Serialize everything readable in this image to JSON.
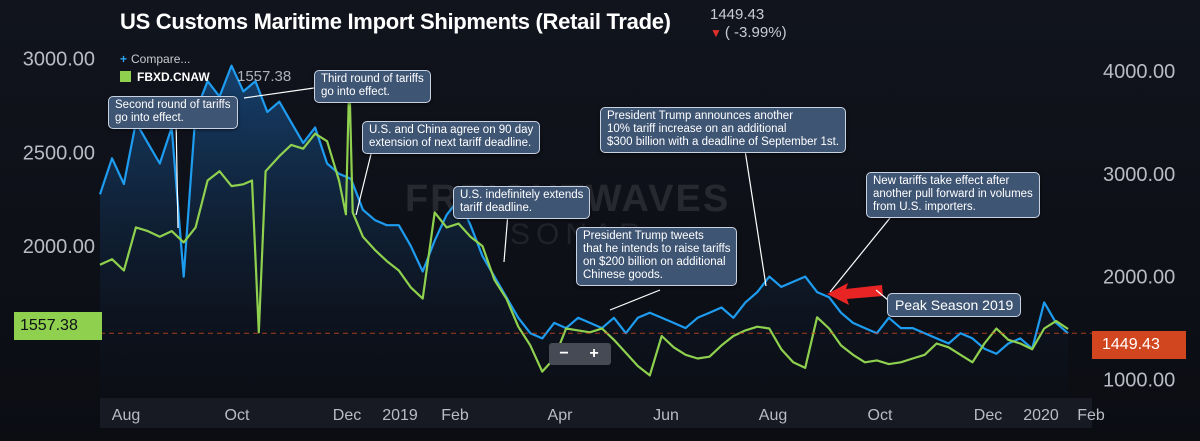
{
  "header": {
    "title": "US Customs Maritime Import Shipments (Retail Trade)",
    "last_value": "1449.43",
    "change": "( -3.99%)",
    "change_color": "#e0302a"
  },
  "legend": {
    "compare_label": "Compare...",
    "series_label": "FBXD.CNAW",
    "series_value": "1557.38"
  },
  "watermark": {
    "text": "FREIGHTWAVES",
    "sub": "SONAR"
  },
  "value_tags": {
    "left": "1557.38",
    "right": "1449.43",
    "left_color": "#8fd14f",
    "right_color": "#d2461f"
  },
  "zoom_controls": {
    "minus": "−",
    "plus": "+"
  },
  "annotations": [
    {
      "text": "Second round of tariffs\ngo into effect."
    },
    {
      "text": "Third round of tariffs\ngo into effect."
    },
    {
      "text": "U.S. and China agree on 90 day\nextension of next tariff deadline."
    },
    {
      "text": "U.S. indefinitely extends\ntariff deadline."
    },
    {
      "text": "President Trump tweets\nthat he intends to raise tariffs\non $200 billion on additional\nChinese goods."
    },
    {
      "text": "President Trump announces another\n10% tariff increase on an additional\n$300 billion with a deadline of September 1st."
    },
    {
      "text": "New tariffs take effect after\nanother pull forward in volumes\nfrom U.S. importers."
    }
  ],
  "peak_label": "Peak Season 2019",
  "chart_data": {
    "type": "line",
    "x_ticks": [
      "Aug",
      "Oct",
      "Dec",
      "2019",
      "Feb",
      "Apr",
      "Jun",
      "Aug",
      "Oct",
      "Dec",
      "2020",
      "Feb"
    ],
    "left_axis": {
      "ticks": [
        "3000.00",
        "2500.00",
        "2000.00"
      ],
      "range": [
        1200,
        3100
      ]
    },
    "right_axis": {
      "ticks": [
        "4000.00",
        "3000.00",
        "2000.00",
        "1000.00"
      ],
      "range": [
        840,
        4300
      ]
    },
    "reference_line": 1449.43,
    "series": [
      {
        "name": "FBXD.CNAW",
        "axis": "left",
        "color": "#8fd14f",
        "points": [
          [
            "2018-07-13",
            1900
          ],
          [
            "2018-07-20",
            1930
          ],
          [
            "2018-07-27",
            1870
          ],
          [
            "2018-08-03",
            2100
          ],
          [
            "2018-08-10",
            2080
          ],
          [
            "2018-08-17",
            2050
          ],
          [
            "2018-08-24",
            2080
          ],
          [
            "2018-08-31",
            2020
          ],
          [
            "2018-09-07",
            2100
          ],
          [
            "2018-09-14",
            2350
          ],
          [
            "2018-09-21",
            2400
          ],
          [
            "2018-09-28",
            2320
          ],
          [
            "2018-10-05",
            2330
          ],
          [
            "2018-10-10",
            2350
          ],
          [
            "2018-10-14",
            1540
          ],
          [
            "2018-10-18",
            2400
          ],
          [
            "2018-10-26",
            2480
          ],
          [
            "2018-11-02",
            2540
          ],
          [
            "2018-11-09",
            2520
          ],
          [
            "2018-11-16",
            2600
          ],
          [
            "2018-11-23",
            2560
          ],
          [
            "2018-11-30",
            2350
          ],
          [
            "2018-12-04",
            2170
          ],
          [
            "2018-12-06",
            2900
          ],
          [
            "2018-12-08",
            2180
          ],
          [
            "2018-12-14",
            2050
          ],
          [
            "2018-12-21",
            1980
          ],
          [
            "2018-12-28",
            1920
          ],
          [
            "2019-01-04",
            1870
          ],
          [
            "2019-01-11",
            1780
          ],
          [
            "2019-01-18",
            1720
          ],
          [
            "2019-01-25",
            2180
          ],
          [
            "2019-02-01",
            2100
          ],
          [
            "2019-02-08",
            2120
          ],
          [
            "2019-02-15",
            2050
          ],
          [
            "2019-02-22",
            2000
          ],
          [
            "2019-03-01",
            1820
          ],
          [
            "2019-03-08",
            1720
          ],
          [
            "2019-03-15",
            1570
          ],
          [
            "2019-03-22",
            1470
          ],
          [
            "2019-03-29",
            1330
          ],
          [
            "2019-04-05",
            1400
          ],
          [
            "2019-04-12",
            1560
          ],
          [
            "2019-04-19",
            1550
          ],
          [
            "2019-04-26",
            1540
          ],
          [
            "2019-05-03",
            1560
          ],
          [
            "2019-05-10",
            1500
          ],
          [
            "2019-05-17",
            1430
          ],
          [
            "2019-05-24",
            1360
          ],
          [
            "2019-05-31",
            1310
          ],
          [
            "2019-06-07",
            1520
          ],
          [
            "2019-06-14",
            1460
          ],
          [
            "2019-06-21",
            1420
          ],
          [
            "2019-06-28",
            1400
          ],
          [
            "2019-07-05",
            1410
          ],
          [
            "2019-07-12",
            1470
          ],
          [
            "2019-07-19",
            1520
          ],
          [
            "2019-07-26",
            1550
          ],
          [
            "2019-08-02",
            1570
          ],
          [
            "2019-08-09",
            1560
          ],
          [
            "2019-08-16",
            1450
          ],
          [
            "2019-08-23",
            1380
          ],
          [
            "2019-08-30",
            1350
          ],
          [
            "2019-09-06",
            1620
          ],
          [
            "2019-09-13",
            1560
          ],
          [
            "2019-09-20",
            1470
          ],
          [
            "2019-09-27",
            1420
          ],
          [
            "2019-10-04",
            1380
          ],
          [
            "2019-10-11",
            1390
          ],
          [
            "2019-10-18",
            1370
          ],
          [
            "2019-10-25",
            1380
          ],
          [
            "2019-11-01",
            1400
          ],
          [
            "2019-11-08",
            1420
          ],
          [
            "2019-11-15",
            1480
          ],
          [
            "2019-11-22",
            1460
          ],
          [
            "2019-11-29",
            1420
          ],
          [
            "2019-12-06",
            1380
          ],
          [
            "2019-12-13",
            1480
          ],
          [
            "2019-12-20",
            1560
          ],
          [
            "2019-12-27",
            1500
          ],
          [
            "2020-01-03",
            1480
          ],
          [
            "2020-01-10",
            1450
          ],
          [
            "2020-01-17",
            1560
          ],
          [
            "2020-01-24",
            1600
          ],
          [
            "2020-01-31",
            1557.38
          ]
        ]
      },
      {
        "name": "US Customs Maritime Import Shipments (Retail Trade)",
        "axis": "right",
        "color": "#1e9cf0",
        "points": [
          [
            "2018-07-13",
            2800
          ],
          [
            "2018-07-20",
            3150
          ],
          [
            "2018-07-27",
            2900
          ],
          [
            "2018-08-03",
            3500
          ],
          [
            "2018-08-10",
            3300
          ],
          [
            "2018-08-17",
            3100
          ],
          [
            "2018-08-24",
            3450
          ],
          [
            "2018-08-31",
            2000
          ],
          [
            "2018-09-07",
            3600
          ],
          [
            "2018-09-14",
            3900
          ],
          [
            "2018-09-21",
            3750
          ],
          [
            "2018-09-28",
            4050
          ],
          [
            "2018-10-05",
            3800
          ],
          [
            "2018-10-12",
            3900
          ],
          [
            "2018-10-19",
            3600
          ],
          [
            "2018-10-26",
            3700
          ],
          [
            "2018-11-02",
            3500
          ],
          [
            "2018-11-09",
            3300
          ],
          [
            "2018-11-16",
            3450
          ],
          [
            "2018-11-23",
            3100
          ],
          [
            "2018-11-30",
            3000
          ],
          [
            "2018-12-07",
            2950
          ],
          [
            "2018-12-14",
            2650
          ],
          [
            "2018-12-21",
            2550
          ],
          [
            "2018-12-28",
            2500
          ],
          [
            "2019-01-04",
            2500
          ],
          [
            "2019-01-11",
            2300
          ],
          [
            "2019-01-18",
            2050
          ],
          [
            "2019-01-25",
            2350
          ],
          [
            "2019-02-01",
            2600
          ],
          [
            "2019-02-08",
            2750
          ],
          [
            "2019-02-15",
            2500
          ],
          [
            "2019-02-22",
            2200
          ],
          [
            "2019-03-01",
            2000
          ],
          [
            "2019-03-08",
            1800
          ],
          [
            "2019-03-15",
            1600
          ],
          [
            "2019-03-22",
            1450
          ],
          [
            "2019-03-29",
            1400
          ],
          [
            "2019-04-05",
            1550
          ],
          [
            "2019-04-12",
            1500
          ],
          [
            "2019-04-19",
            1600
          ],
          [
            "2019-04-26",
            1550
          ],
          [
            "2019-05-03",
            1500
          ],
          [
            "2019-05-10",
            1600
          ],
          [
            "2019-05-17",
            1450
          ],
          [
            "2019-05-24",
            1600
          ],
          [
            "2019-05-31",
            1650
          ],
          [
            "2019-06-07",
            1600
          ],
          [
            "2019-06-14",
            1550
          ],
          [
            "2019-06-21",
            1500
          ],
          [
            "2019-06-28",
            1600
          ],
          [
            "2019-07-05",
            1650
          ],
          [
            "2019-07-12",
            1700
          ],
          [
            "2019-07-19",
            1600
          ],
          [
            "2019-07-26",
            1750
          ],
          [
            "2019-08-02",
            1850
          ],
          [
            "2019-08-09",
            2000
          ],
          [
            "2019-08-16",
            1900
          ],
          [
            "2019-08-23",
            1950
          ],
          [
            "2019-08-30",
            2000
          ],
          [
            "2019-09-06",
            1850
          ],
          [
            "2019-09-13",
            1800
          ],
          [
            "2019-09-20",
            1650
          ],
          [
            "2019-09-27",
            1550
          ],
          [
            "2019-10-04",
            1500
          ],
          [
            "2019-10-11",
            1450
          ],
          [
            "2019-10-18",
            1600
          ],
          [
            "2019-10-25",
            1500
          ],
          [
            "2019-11-01",
            1500
          ],
          [
            "2019-11-08",
            1450
          ],
          [
            "2019-11-15",
            1400
          ],
          [
            "2019-11-22",
            1350
          ],
          [
            "2019-11-29",
            1450
          ],
          [
            "2019-12-06",
            1400
          ],
          [
            "2019-12-13",
            1300
          ],
          [
            "2019-12-20",
            1250
          ],
          [
            "2019-12-27",
            1350
          ],
          [
            "2020-01-03",
            1400
          ],
          [
            "2020-01-10",
            1300
          ],
          [
            "2020-01-17",
            1750
          ],
          [
            "2020-01-24",
            1550
          ],
          [
            "2020-01-31",
            1449.43
          ]
        ]
      }
    ]
  }
}
